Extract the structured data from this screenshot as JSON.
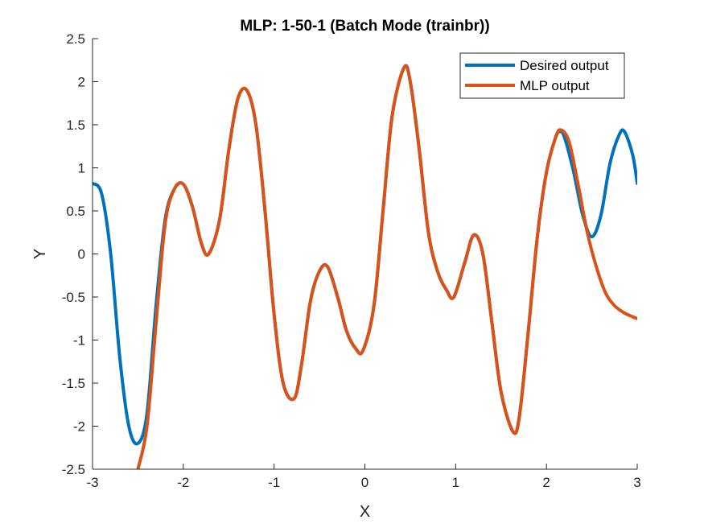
{
  "chart_data": {
    "type": "line",
    "title": "MLP: 1-50-1 (Batch Mode (trainbr))",
    "xlabel": "X",
    "ylabel": "Y",
    "xlim": [
      -3,
      3
    ],
    "ylim": [
      -2.5,
      2.5
    ],
    "xticks": [
      -3,
      -2,
      -1,
      0,
      1,
      2,
      3
    ],
    "yticks": [
      -2.5,
      -2,
      -1.5,
      -1,
      -0.5,
      0,
      0.5,
      1,
      1.5,
      2,
      2.5
    ],
    "xtick_labels": [
      "-3",
      "-2",
      "-1",
      "0",
      "1",
      "2",
      "3"
    ],
    "ytick_labels": [
      "-2.5",
      "-2",
      "-1.5",
      "-1",
      "-0.5",
      "0",
      "0.5",
      "1",
      "1.5",
      "2",
      "2.5"
    ],
    "grid": false,
    "legend_position": "top-right",
    "series": [
      {
        "name": "Desired output",
        "color": "#0072BD",
        "x": [
          -3.0,
          -2.9,
          -2.8,
          -2.7,
          -2.6,
          -2.5,
          -2.4,
          -2.3,
          -2.2,
          -2.1,
          -2.0,
          -1.9,
          -1.8,
          -1.72,
          -1.6,
          -1.5,
          -1.4,
          -1.3,
          -1.2,
          -1.1,
          -1.0,
          -0.9,
          -0.78,
          -0.7,
          -0.6,
          -0.5,
          -0.41,
          -0.3,
          -0.2,
          -0.1,
          -0.02,
          0.1,
          0.2,
          0.3,
          0.43,
          0.5,
          0.6,
          0.7,
          0.8,
          0.9,
          0.98,
          1.1,
          1.2,
          1.3,
          1.4,
          1.5,
          1.63,
          1.7,
          1.8,
          1.9,
          2.0,
          2.1,
          2.15,
          2.2,
          2.3,
          2.4,
          2.5,
          2.6,
          2.7,
          2.8,
          2.86,
          2.95,
          3.0
        ],
        "y": [
          0.82,
          0.7,
          0.0,
          -1.2,
          -2.0,
          -2.2,
          -1.85,
          -0.6,
          0.4,
          0.75,
          0.81,
          0.55,
          0.12,
          0.0,
          0.4,
          1.2,
          1.8,
          1.9,
          1.5,
          0.5,
          -0.7,
          -1.5,
          -1.68,
          -1.3,
          -0.55,
          -0.2,
          -0.15,
          -0.5,
          -0.9,
          -1.1,
          -1.12,
          -0.6,
          0.5,
          1.6,
          2.16,
          2.0,
          1.2,
          0.25,
          -0.2,
          -0.42,
          -0.5,
          -0.1,
          0.22,
          0.0,
          -0.8,
          -1.6,
          -2.06,
          -1.9,
          -0.9,
          0.2,
          0.95,
          1.35,
          1.42,
          1.35,
          0.95,
          0.45,
          0.2,
          0.45,
          1.05,
          1.38,
          1.42,
          1.15,
          0.82
        ]
      },
      {
        "name": "MLP output",
        "color": "#D95319",
        "x": [
          -2.5,
          -2.4,
          -2.3,
          -2.2,
          -2.1,
          -2.0,
          -1.9,
          -1.8,
          -1.72,
          -1.6,
          -1.5,
          -1.4,
          -1.3,
          -1.2,
          -1.1,
          -1.0,
          -0.9,
          -0.78,
          -0.7,
          -0.6,
          -0.5,
          -0.41,
          -0.3,
          -0.2,
          -0.1,
          -0.02,
          0.1,
          0.2,
          0.3,
          0.43,
          0.5,
          0.6,
          0.7,
          0.8,
          0.9,
          0.98,
          1.1,
          1.2,
          1.3,
          1.4,
          1.5,
          1.63,
          1.7,
          1.8,
          1.9,
          2.0,
          2.1,
          2.16,
          2.25,
          2.35,
          2.45,
          2.55,
          2.65,
          2.75,
          2.85,
          2.95,
          3.0
        ],
        "y": [
          -2.5,
          -2.0,
          -0.8,
          0.35,
          0.75,
          0.81,
          0.55,
          0.12,
          0.0,
          0.4,
          1.2,
          1.8,
          1.9,
          1.5,
          0.5,
          -0.7,
          -1.5,
          -1.68,
          -1.3,
          -0.55,
          -0.2,
          -0.15,
          -0.5,
          -0.9,
          -1.1,
          -1.12,
          -0.6,
          0.5,
          1.6,
          2.16,
          2.0,
          1.2,
          0.25,
          -0.2,
          -0.42,
          -0.5,
          -0.1,
          0.22,
          0.0,
          -0.8,
          -1.6,
          -2.06,
          -1.9,
          -0.9,
          0.2,
          0.95,
          1.35,
          1.44,
          1.3,
          0.8,
          0.25,
          -0.15,
          -0.45,
          -0.6,
          -0.68,
          -0.73,
          -0.75
        ]
      }
    ]
  }
}
